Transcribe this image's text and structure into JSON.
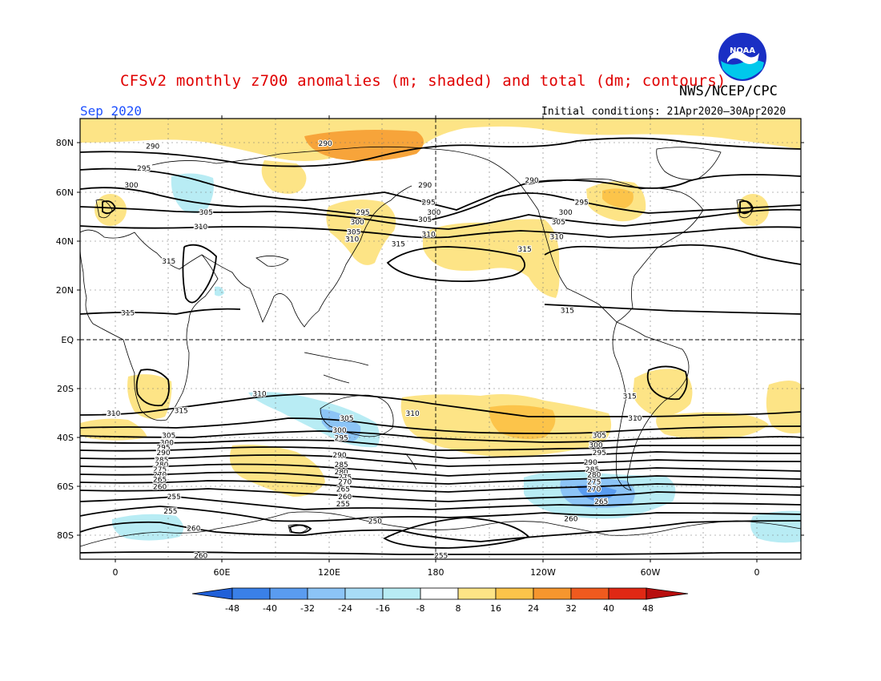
{
  "title": "CFSv2 monthly z700 anomalies (m; shaded) and total (dm; contours)",
  "agency": "NWS/NCEP/CPC",
  "valid_month": "Sep 2020",
  "initial_conditions": "Initial conditions: 21Apr2020–30Apr2020",
  "logo_text": "NOAA",
  "colors": {
    "title": "#e00000",
    "valid": "#1e50ff",
    "neg48": "#2060d8",
    "neg40": "#3a80e8",
    "neg32": "#5a9cf0",
    "neg24": "#8cc4f6",
    "neg16": "#b8ecf4",
    "pos8": "#fde486",
    "pos16": "#fcc44a",
    "pos24": "#f6962e",
    "pos32": "#f05a1e",
    "pos40": "#e02814",
    "pos48": "#b80e0e"
  },
  "axes": {
    "lat_ticks": [
      "80N",
      "60N",
      "40N",
      "20N",
      "EQ",
      "20S",
      "40S",
      "60S",
      "80S"
    ],
    "lon_ticks": [
      "0",
      "60E",
      "120E",
      "180",
      "120W",
      "60W",
      "0"
    ]
  },
  "colorbar": {
    "labels": [
      "-48",
      "-40",
      "-32",
      "-24",
      "-16",
      "-8",
      "8",
      "16",
      "24",
      "32",
      "40",
      "48"
    ]
  },
  "contour_labels": [
    {
      "text": "290",
      "lon": 21,
      "lat": 79
    },
    {
      "text": "295",
      "lon": 16,
      "lat": 70
    },
    {
      "text": "300",
      "lon": 9,
      "lat": 63
    },
    {
      "text": "305",
      "lon": 51,
      "lat": 52
    },
    {
      "text": "310",
      "lon": 48,
      "lat": 46
    },
    {
      "text": "315",
      "lon": 30,
      "lat": 32
    },
    {
      "text": "315",
      "lon": 7,
      "lat": 11
    },
    {
      "text": "290",
      "lon": 118,
      "lat": 80
    },
    {
      "text": "295",
      "lon": 139,
      "lat": 52
    },
    {
      "text": "300",
      "lon": 136,
      "lat": 48
    },
    {
      "text": "305",
      "lon": 134,
      "lat": 44
    },
    {
      "text": "310",
      "lon": 133,
      "lat": 41
    },
    {
      "text": "315",
      "lon": 159,
      "lat": 39
    },
    {
      "text": "290",
      "lon": 174,
      "lat": 63
    },
    {
      "text": "295",
      "lon": 176,
      "lat": 56
    },
    {
      "text": "300",
      "lon": 179,
      "lat": 52
    },
    {
      "text": "305",
      "lon": 174,
      "lat": 49
    },
    {
      "text": "310",
      "lon": 176,
      "lat": 43
    },
    {
      "text": "315",
      "lon": 230,
      "lat": 37
    },
    {
      "text": "315",
      "lon": 254,
      "lat": 12
    },
    {
      "text": "310",
      "lon": -1,
      "lat": -30
    },
    {
      "text": "315",
      "lon": 37,
      "lat": -29
    },
    {
      "text": "310",
      "lon": 81,
      "lat": -22
    },
    {
      "text": "305",
      "lon": 30,
      "lat": -39
    },
    {
      "text": "300",
      "lon": 29,
      "lat": -42
    },
    {
      "text": "295",
      "lon": 27,
      "lat": -44
    },
    {
      "text": "290",
      "lon": 27,
      "lat": -46
    },
    {
      "text": "285",
      "lon": 26,
      "lat": -49
    },
    {
      "text": "280",
      "lon": 26,
      "lat": -51
    },
    {
      "text": "275",
      "lon": 25,
      "lat": -53
    },
    {
      "text": "270",
      "lon": 25,
      "lat": -55
    },
    {
      "text": "265",
      "lon": 25,
      "lat": -57
    },
    {
      "text": "260",
      "lon": 25,
      "lat": -60
    },
    {
      "text": "255",
      "lon": 33,
      "lat": -64
    },
    {
      "text": "255",
      "lon": 31,
      "lat": -70
    },
    {
      "text": "260",
      "lon": 44,
      "lat": -77
    },
    {
      "text": "260",
      "lon": 48,
      "lat": -88
    },
    {
      "text": "305",
      "lon": 130,
      "lat": -32
    },
    {
      "text": "300",
      "lon": 126,
      "lat": -37
    },
    {
      "text": "295",
      "lon": 127,
      "lat": -40
    },
    {
      "text": "290",
      "lon": 126,
      "lat": -47
    },
    {
      "text": "285",
      "lon": 127,
      "lat": -51
    },
    {
      "text": "280",
      "lon": 127,
      "lat": -54
    },
    {
      "text": "275",
      "lon": 129,
      "lat": -56
    },
    {
      "text": "270",
      "lon": 129,
      "lat": -58
    },
    {
      "text": "265",
      "lon": 128,
      "lat": -61
    },
    {
      "text": "260",
      "lon": 129,
      "lat": -64
    },
    {
      "text": "255",
      "lon": 128,
      "lat": -67
    },
    {
      "text": "250",
      "lon": 146,
      "lat": -74
    },
    {
      "text": "310",
      "lon": 167,
      "lat": -30
    },
    {
      "text": "255",
      "lon": 183,
      "lat": -88
    },
    {
      "text": "315",
      "lon": 289,
      "lat": -23
    },
    {
      "text": "310",
      "lon": 292,
      "lat": -32
    },
    {
      "text": "305",
      "lon": 272,
      "lat": -39
    },
    {
      "text": "300",
      "lon": 270,
      "lat": -43
    },
    {
      "text": "295",
      "lon": 272,
      "lat": -46
    },
    {
      "text": "290",
      "lon": 267,
      "lat": -50
    },
    {
      "text": "285",
      "lon": 268,
      "lat": -53
    },
    {
      "text": "280",
      "lon": 269,
      "lat": -55
    },
    {
      "text": "275",
      "lon": 269,
      "lat": -58
    },
    {
      "text": "270",
      "lon": 269,
      "lat": -61
    },
    {
      "text": "265",
      "lon": 273,
      "lat": -66
    },
    {
      "text": "260",
      "lon": 256,
      "lat": -73
    },
    {
      "text": "290",
      "lon": 234,
      "lat": 65
    },
    {
      "text": "295",
      "lon": 262,
      "lat": 56
    },
    {
      "text": "300",
      "lon": 253,
      "lat": 52
    },
    {
      "text": "305",
      "lon": 249,
      "lat": 48
    },
    {
      "text": "310",
      "lon": 248,
      "lat": 42
    }
  ]
}
